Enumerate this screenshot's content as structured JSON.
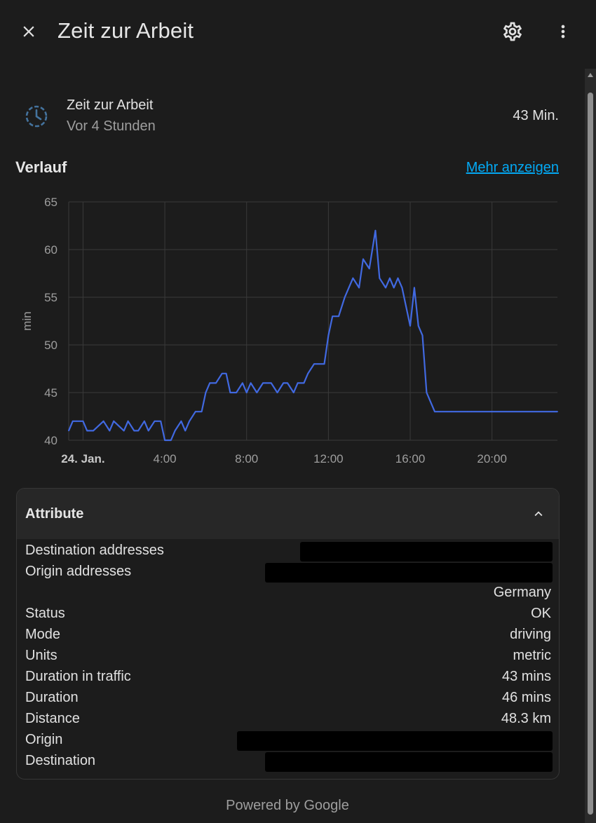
{
  "header": {
    "title": "Zeit zur Arbeit",
    "icons": {
      "close": "close-icon",
      "settings": "gear-icon",
      "menu": "more-vertical-icon"
    }
  },
  "entity": {
    "name": "Zeit zur Arbeit",
    "last_changed": "Vor 4 Stunden",
    "state": "43 Min.",
    "icon": "clock-icon",
    "icon_color": "#44739e"
  },
  "history": {
    "title": "Verlauf",
    "more_link": "Mehr anzeigen"
  },
  "chart_data": {
    "type": "line",
    "ylabel": "min",
    "ylim": [
      40,
      65
    ],
    "yticks": [
      "40",
      "45",
      "50",
      "55",
      "60",
      "65"
    ],
    "xticks": [
      {
        "label": "24. Jan.",
        "bold": true,
        "hour": 0
      },
      {
        "label": "4:00",
        "bold": false,
        "hour": 4
      },
      {
        "label": "8:00",
        "bold": false,
        "hour": 8
      },
      {
        "label": "12:00",
        "bold": false,
        "hour": 12
      },
      {
        "label": "16:00",
        "bold": false,
        "hour": 16
      },
      {
        "label": "20:00",
        "bold": false,
        "hour": 20
      }
    ],
    "xlim_hours": [
      -0.7,
      23.2
    ],
    "grid": true,
    "color": "#4169e1",
    "series": [
      {
        "x": [
          -0.7,
          -0.5,
          -0.3,
          0,
          0.2,
          0.5,
          1,
          1.3,
          1.5,
          2,
          2.2,
          2.5,
          2.7,
          3,
          3.2,
          3.5,
          3.8,
          4,
          4.3,
          4.5,
          4.8,
          5,
          5.2,
          5.5,
          5.8,
          6,
          6.2,
          6.5,
          6.8,
          7,
          7.2,
          7.5,
          7.8,
          8,
          8.2,
          8.5,
          8.8,
          9,
          9.2,
          9.5,
          9.8,
          10,
          10.3,
          10.5,
          10.8,
          11,
          11.3,
          11.5,
          11.8,
          12,
          12.2,
          12.5,
          12.8,
          13,
          13.2,
          13.5,
          13.7,
          14,
          14.3,
          14.5,
          14.8,
          15,
          15.2,
          15.4,
          15.6,
          15.8,
          16,
          16.2,
          16.4,
          16.6,
          16.8,
          17,
          17.2,
          17.5,
          17.8,
          18,
          18.2,
          18.5,
          18.8,
          19,
          19.5,
          20,
          21,
          22,
          23.2
        ],
        "y": [
          41,
          42,
          42,
          42,
          41,
          41,
          42,
          41,
          42,
          41,
          42,
          41,
          41,
          42,
          41,
          42,
          42,
          40,
          40,
          41,
          42,
          41,
          42,
          43,
          43,
          45,
          46,
          46,
          47,
          47,
          45,
          45,
          46,
          45,
          46,
          45,
          46,
          46,
          46,
          45,
          46,
          46,
          45,
          46,
          46,
          47,
          48,
          48,
          48,
          51,
          53,
          53,
          55,
          56,
          57,
          56,
          59,
          58,
          62,
          57,
          56,
          57,
          56,
          57,
          56,
          54,
          52,
          56,
          52,
          51,
          45,
          44,
          43,
          43,
          43,
          43,
          43,
          43,
          43,
          43,
          43,
          43,
          43,
          43,
          43
        ]
      }
    ]
  },
  "attributes": {
    "title": "Attribute",
    "rows": [
      {
        "key": "Destination addresses",
        "value": "",
        "redacted": true
      },
      {
        "key": "Origin addresses",
        "value": "",
        "redacted": true
      },
      {
        "key": "",
        "value": "Germany",
        "redacted": false
      },
      {
        "key": "Status",
        "value": "OK",
        "redacted": false
      },
      {
        "key": "Mode",
        "value": "driving",
        "redacted": false
      },
      {
        "key": "Units",
        "value": "metric",
        "redacted": false
      },
      {
        "key": "Duration in traffic",
        "value": "43 mins",
        "redacted": false
      },
      {
        "key": "Duration",
        "value": "46 mins",
        "redacted": false
      },
      {
        "key": "Distance",
        "value": "48.3 km",
        "redacted": false
      },
      {
        "key": "Origin",
        "value": "",
        "redacted": true
      },
      {
        "key": "Destination",
        "value": "",
        "redacted": true
      }
    ]
  },
  "footer": {
    "text": "Powered by Google"
  }
}
